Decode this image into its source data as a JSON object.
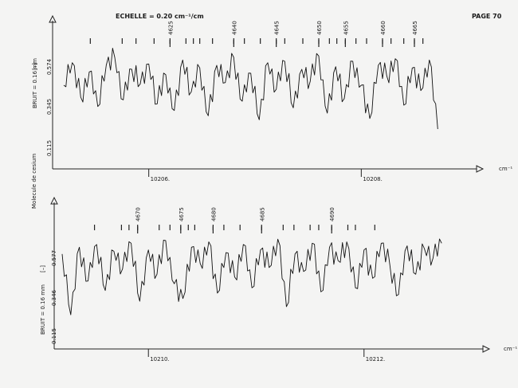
{
  "header": {
    "scale_label": "ECHELLE = 0.20 cm⁻¹/cm",
    "page_label": "PAGE 70"
  },
  "chart_data": [
    {
      "type": "line",
      "title": "",
      "xlabel": "cm⁻¹",
      "ylabel_side": "Molecule de cesium",
      "noise_label": "BRUIT = 0.16 mm",
      "unit_mark": "[–]",
      "yticks": [
        "0.115",
        "0.345",
        "0.574"
      ],
      "xticks": [
        {
          "label": "10206.",
          "x": 10206
        },
        {
          "label": "10208.",
          "x": 10208
        }
      ],
      "xlim": [
        10205.2,
        10208.8
      ],
      "ylim": [
        0,
        0.72
      ],
      "line_numbers": [
        {
          "label": "4625",
          "x": 10206.2
        },
        {
          "label": "4640",
          "x": 10206.8
        },
        {
          "label": "4645",
          "x": 10207.2
        },
        {
          "label": "4650",
          "x": 10207.6
        },
        {
          "label": "4655",
          "x": 10207.85
        },
        {
          "label": "4660",
          "x": 10208.2
        },
        {
          "label": "4665",
          "x": 10208.5
        }
      ],
      "line_marks": [
        10205.45,
        10205.75,
        10205.88,
        10206.05,
        10206.2,
        10206.35,
        10206.42,
        10206.48,
        10206.6,
        10206.8,
        10206.9,
        10207.05,
        10207.2,
        10207.28,
        10207.45,
        10207.6,
        10207.7,
        10207.77,
        10207.85,
        10207.95,
        10208.05,
        10208.2,
        10208.28,
        10208.4,
        10208.5,
        10208.58
      ],
      "series": [
        {
          "x": [
            10205.2,
            10205.28,
            10205.36,
            10205.44,
            10205.52,
            10205.6,
            10205.68,
            10205.76,
            10205.84,
            10205.92,
            10206.0,
            10206.08,
            10206.16,
            10206.24,
            10206.32,
            10206.4,
            10206.48,
            10206.56,
            10206.64,
            10206.72,
            10206.8,
            10206.88,
            10206.96,
            10207.04,
            10207.12,
            10207.2,
            10207.28,
            10207.36,
            10207.44,
            10207.52,
            10207.6,
            10207.68,
            10207.76,
            10207.84,
            10207.92,
            10208.0,
            10208.08,
            10208.16,
            10208.24,
            10208.32,
            10208.4,
            10208.48,
            10208.56,
            10208.64,
            10208.72
          ],
          "values": [
            0.45,
            0.62,
            0.36,
            0.55,
            0.29,
            0.6,
            0.66,
            0.34,
            0.57,
            0.46,
            0.61,
            0.31,
            0.53,
            0.26,
            0.64,
            0.4,
            0.58,
            0.22,
            0.6,
            0.47,
            0.66,
            0.33,
            0.54,
            0.19,
            0.62,
            0.42,
            0.63,
            0.28,
            0.57,
            0.48,
            0.67,
            0.24,
            0.59,
            0.35,
            0.63,
            0.45,
            0.2,
            0.6,
            0.52,
            0.65,
            0.3,
            0.58,
            0.41,
            0.64,
            0.12
          ]
        }
      ]
    },
    {
      "type": "line",
      "title": "",
      "xlabel": "cm⁻¹",
      "noise_label": "BRUIT = 0.16 mm",
      "unit_mark": "[–]",
      "yticks": [
        "0.115",
        "0.346",
        "0.577"
      ],
      "xticks": [
        {
          "label": "10210.",
          "x": 10210
        },
        {
          "label": "10212.",
          "x": 10212
        }
      ],
      "xlim": [
        10209.2,
        10212.8
      ],
      "ylim": [
        0,
        0.72
      ],
      "line_numbers": [
        {
          "label": "4670",
          "x": 10209.9
        },
        {
          "label": "4675",
          "x": 10210.3
        },
        {
          "label": "4680",
          "x": 10210.6
        },
        {
          "label": "4685",
          "x": 10211.05
        },
        {
          "label": "4690",
          "x": 10211.7
        }
      ],
      "line_marks": [
        10209.5,
        10209.75,
        10209.82,
        10209.9,
        10210.1,
        10210.2,
        10210.3,
        10210.37,
        10210.43,
        10210.6,
        10210.7,
        10210.85,
        10211.05,
        10211.25,
        10211.35,
        10211.5,
        10211.58,
        10211.7,
        10211.85,
        10211.92,
        10212.1
      ],
      "series": [
        {
          "x": [
            10209.2,
            10209.28,
            10209.36,
            10209.44,
            10209.52,
            10209.6,
            10209.68,
            10209.76,
            10209.84,
            10209.92,
            10210.0,
            10210.08,
            10210.16,
            10210.24,
            10210.32,
            10210.4,
            10210.48,
            10210.56,
            10210.64,
            10210.72,
            10210.8,
            10210.88,
            10210.96,
            10211.04,
            10211.12,
            10211.2,
            10211.28,
            10211.36,
            10211.44,
            10211.52,
            10211.6,
            10211.68,
            10211.76,
            10211.84,
            10211.92,
            10212.0,
            10212.08,
            10212.16,
            10212.24,
            10212.32,
            10212.4,
            10212.48,
            10212.56,
            10212.64,
            10212.72
          ],
          "values": [
            0.55,
            0.1,
            0.6,
            0.35,
            0.62,
            0.28,
            0.57,
            0.44,
            0.63,
            0.2,
            0.58,
            0.4,
            0.65,
            0.33,
            0.22,
            0.6,
            0.48,
            0.64,
            0.26,
            0.56,
            0.38,
            0.62,
            0.3,
            0.58,
            0.45,
            0.66,
            0.16,
            0.55,
            0.42,
            0.63,
            0.27,
            0.6,
            0.5,
            0.64,
            0.3,
            0.58,
            0.37,
            0.63,
            0.47,
            0.25,
            0.61,
            0.4,
            0.59,
            0.52,
            0.63
          ]
        }
      ]
    }
  ]
}
